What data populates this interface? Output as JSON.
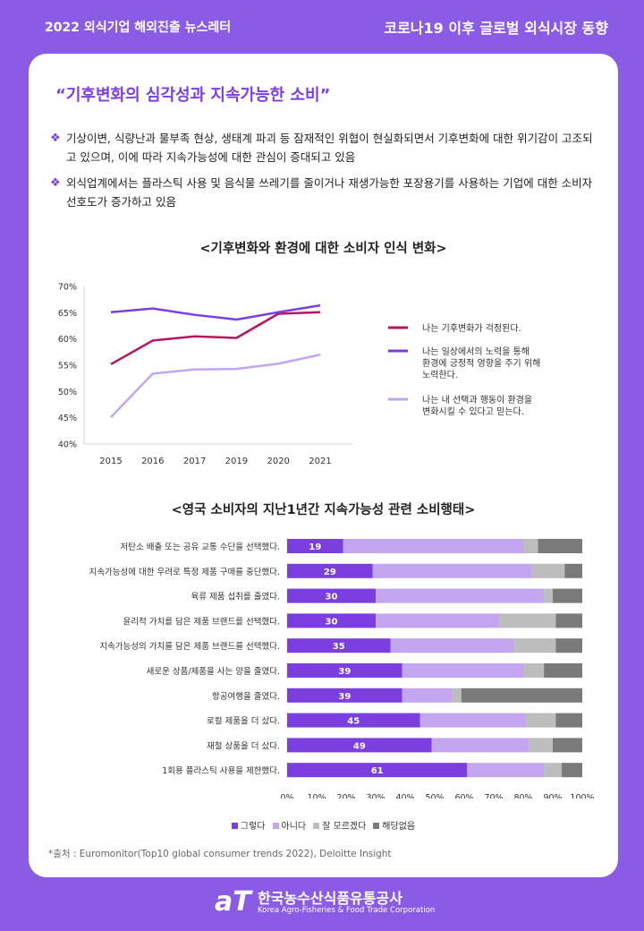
{
  "header": {
    "left": "2022 외식기업 해외진출 뉴스레터",
    "right": "코로나19 이후 글로벌 외식시장 동향"
  },
  "headline": "“기후변화의 심각성과 지속가능한 소비”",
  "bullets": [
    "기상이변, 식량난과 물부족 현상, 생태계 파괴 등 잠재적인 위협이 현실화되면서 기후변화에 대한 위기감이 고조되고 있으며, 이에 따라 지속가능성에 대한 관심이 증대되고 있음",
    "외식업계에서는 플라스틱 사용 및 음식물 쓰레기를 줄이거나 재생가능한 포장용기를 사용하는 기업에 대한 소비자 선호도가 증가하고 있음"
  ],
  "bullet_mark": "❖",
  "chart_data": [
    {
      "type": "line",
      "title": "<기후변화와 환경에 대한 소비자 인식 변화>",
      "x": [
        "2015",
        "2016",
        "2017",
        "2019",
        "2020",
        "2021"
      ],
      "ylim": [
        40,
        70
      ],
      "yticks": [
        "40%",
        "45%",
        "50%",
        "55%",
        "60%",
        "65%",
        "70%"
      ],
      "grid": false,
      "legend_position": "right",
      "series": [
        {
          "name": "나는 기후변화가 걱정된다.",
          "color": "#b5175f",
          "values": [
            55.2,
            59.7,
            60.5,
            60.2,
            64.8,
            65.1
          ]
        },
        {
          "name": "나는 일상에서의 노력을 통해 환경에 긍정적 영향을 주기 위해 노력한다.",
          "color": "#7b3fe0",
          "values": [
            65.1,
            65.8,
            64.6,
            63.7,
            65.1,
            66.4
          ]
        },
        {
          "name": "나는 내 선택과 행동이 환경을 변화시킬 수 있다고 믿는다.",
          "color": "#c3a6ef",
          "values": [
            45.1,
            53.4,
            54.2,
            54.3,
            55.3,
            57.0
          ]
        }
      ]
    },
    {
      "type": "bar",
      "orientation": "horizontal",
      "stacked": true,
      "title": "<영국 소비자의 지난1년간 지속가능성 관련 소비행태>",
      "categories": [
        "저탄소 배출 또는 공유 교통 수단을 선택했다.",
        "지속가능성에 대한 우려로 특정 제품 구매를 중단했다.",
        "육류 제품 섭취를 줄였다.",
        "윤리적 가치를 담은 제품 브랜드를 선택했다.",
        "지속가능성의 가치를 담은 제품 브랜드를 선택했다.",
        "새로운 상품/제품을 사는 양을 줄였다.",
        "항공여행을 줄였다.",
        "로컬 제품을 더 샀다.",
        "재철 상품을 더 샀다.",
        "1회용 플라스틱 사용을 제한했다."
      ],
      "xlim": [
        0,
        100
      ],
      "xticks": [
        "0%",
        "10%",
        "20%",
        "30%",
        "40%",
        "50%",
        "60%",
        "70%",
        "80%",
        "90%",
        "100%"
      ],
      "legend_position": "bottom",
      "series": [
        {
          "name": "그렇다",
          "color": "#7b3fe0",
          "values": [
            19,
            29,
            30,
            30,
            35,
            39,
            39,
            45,
            49,
            61
          ]
        },
        {
          "name": "아니다",
          "color": "#c3a6ef",
          "values": [
            61,
            54,
            57,
            42,
            42,
            41,
            17,
            36,
            33,
            26
          ]
        },
        {
          "name": "잘 모르겠다",
          "color": "#bdbdbd",
          "values": [
            5,
            11,
            3,
            19,
            14,
            7,
            3,
            10,
            8,
            6
          ]
        },
        {
          "name": "해당없음",
          "color": "#7a7a7a",
          "values": [
            15,
            6,
            10,
            9,
            9,
            13,
            41,
            9,
            10,
            7
          ]
        }
      ]
    }
  ],
  "source": "*출처 : Euromonitor(Top10 global consumer trends 2022), Deloitte Insight",
  "footer": {
    "logo": "aT",
    "org_ko": "한국농수산식품유통공사",
    "org_en": "Korea Agro-Fisheries & Food Trade Corporation"
  }
}
